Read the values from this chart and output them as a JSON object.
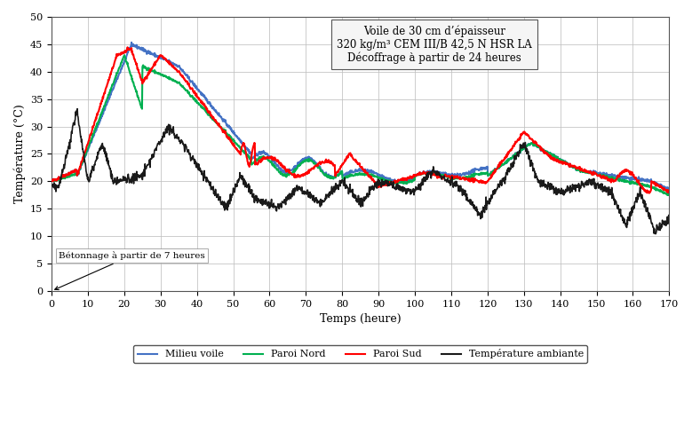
{
  "title_box": "Voile de 30 cm d’épaisseur\n320 kg/m³ CEM III/B 42,5 N HSR LA\nDécoffrage à partir de 24 heures",
  "annotation": "Bétonnage à partir de 7 heures",
  "xlabel": "Temps (heure)",
  "ylabel": "Température (°C)",
  "xlim": [
    0,
    170
  ],
  "ylim": [
    0,
    50
  ],
  "xticks": [
    0,
    10,
    20,
    30,
    40,
    50,
    60,
    70,
    80,
    90,
    100,
    110,
    120,
    130,
    140,
    150,
    160,
    170
  ],
  "yticks": [
    0,
    5,
    10,
    15,
    20,
    25,
    30,
    35,
    40,
    45,
    50
  ],
  "colors": {
    "milieu_voile": "#4472C4",
    "paroi_nord": "#00B050",
    "paroi_sud": "#FF0000",
    "temp_ambiante": "#1A1A1A",
    "grid": "#C0C0C0",
    "background": "#FFFFFF",
    "box_bg": "#F5F5F5"
  },
  "legend": [
    "Milieu voile",
    "Paroi Nord",
    "Paroi Sud",
    "Température ambiante"
  ]
}
